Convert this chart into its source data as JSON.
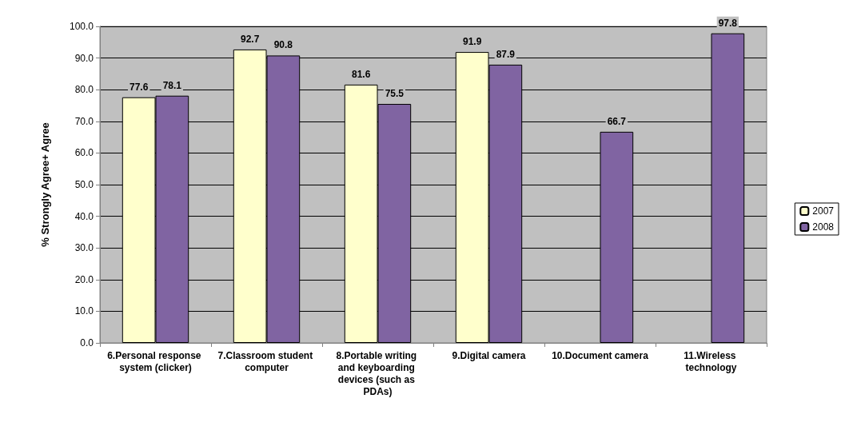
{
  "chart_data": {
    "type": "bar",
    "ylabel": "% Strongly Agree+ Agree",
    "categories": [
      "6.Personal response system (clicker)",
      "7.Classroom student computer",
      "8.Portable writing and keyboarding devices (such as PDAs)",
      "9.Digital camera",
      "10.Document camera",
      "11.Wireless technology"
    ],
    "series": [
      {
        "name": "2007",
        "color": "#ffffcc",
        "values": [
          77.6,
          92.7,
          81.6,
          91.9,
          null,
          null
        ]
      },
      {
        "name": "2008",
        "color": "#8064a2",
        "values": [
          78.1,
          90.8,
          75.5,
          87.9,
          66.7,
          97.8
        ]
      }
    ],
    "ylim": [
      0,
      100
    ],
    "yticks": [
      {
        "value": 0,
        "label": "0.0"
      },
      {
        "value": 10,
        "label": "10.0"
      },
      {
        "value": 20,
        "label": "20.0"
      },
      {
        "value": 30,
        "label": "30.0"
      },
      {
        "value": 40,
        "label": "40.0"
      },
      {
        "value": 50,
        "label": "50.0"
      },
      {
        "value": 60,
        "label": "60.0"
      },
      {
        "value": 70,
        "label": "70.0"
      },
      {
        "value": 80,
        "label": "80.0"
      },
      {
        "value": 90,
        "label": "90.0"
      },
      {
        "value": 100,
        "label": "100.0"
      }
    ],
    "grid": "y",
    "legend": "right",
    "data_labels": true
  }
}
